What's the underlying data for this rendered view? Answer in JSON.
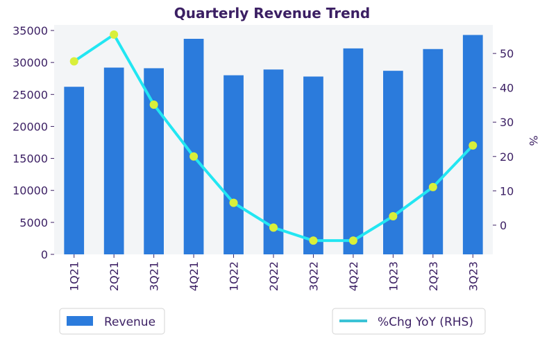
{
  "chart_data": {
    "type": "bar",
    "title": "Quarterly Revenue Trend",
    "xlabel": "",
    "ylabel": "",
    "y2label": "%",
    "categories": [
      "1Q21",
      "2Q21",
      "3Q21",
      "4Q21",
      "1Q22",
      "2Q22",
      "3Q22",
      "4Q22",
      "1Q23",
      "2Q23",
      "3Q23"
    ],
    "series": [
      {
        "name": "Revenue",
        "type": "bar",
        "axis": "left",
        "values": [
          26200,
          29200,
          29100,
          33700,
          28000,
          28900,
          27800,
          32200,
          28700,
          32100,
          34300
        ]
      },
      {
        "name": "%Chg YoY (RHS)",
        "type": "line",
        "axis": "right",
        "values": [
          47.7,
          55.5,
          35.1,
          20.0,
          6.5,
          -0.7,
          -4.5,
          -4.5,
          2.6,
          11.1,
          23.2
        ]
      }
    ],
    "ylim": [
      0,
      35000
    ],
    "yticks": [
      "0",
      "5000",
      "10000",
      "15000",
      "20000",
      "25000",
      "30000",
      "35000"
    ],
    "y2ticks": [
      "0",
      "10",
      "20",
      "30",
      "40",
      "50"
    ],
    "y2lim": [
      -8.5,
      58.3
    ],
    "grid": false,
    "legend_placement": "bottom",
    "colors": {
      "bar": "#2b7bdc",
      "line": "#22e6f2",
      "marker": "#d9ef3a",
      "plot_bg": "#f3f5f7",
      "text": "#3b1f63",
      "legend_line": "#3bc3d6"
    }
  }
}
